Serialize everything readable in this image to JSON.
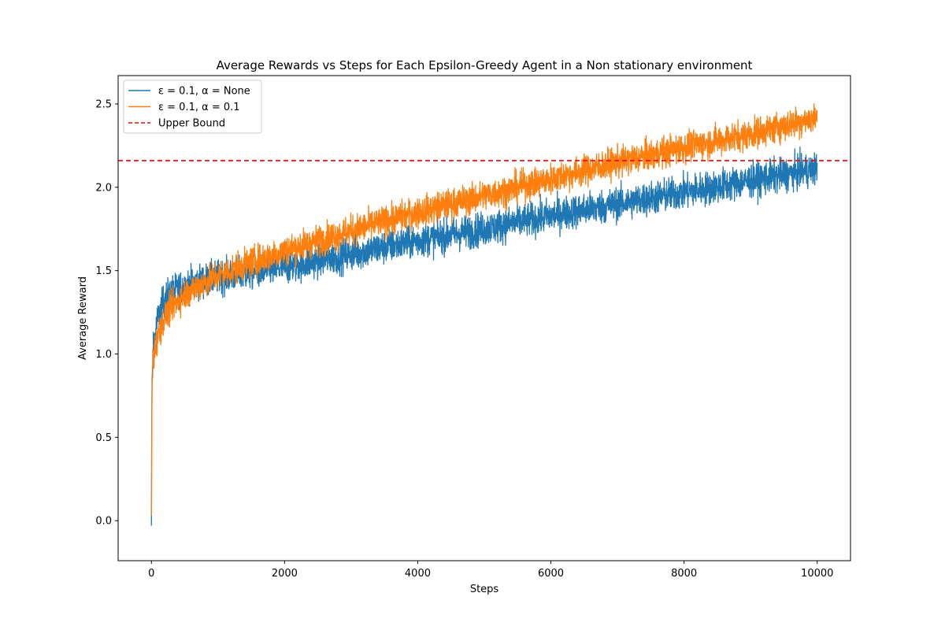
{
  "chart_data": {
    "type": "line",
    "title": "Average Rewards vs Steps for Each Epsilon-Greedy Agent in a Non stationary environment",
    "xlabel": "Steps",
    "ylabel": "Average Reward",
    "xlim": [
      -500,
      10500
    ],
    "ylim": [
      -0.24,
      2.67
    ],
    "xticks": [
      0,
      2000,
      4000,
      6000,
      8000,
      10000
    ],
    "xtick_labels": [
      "0",
      "2000",
      "4000",
      "6000",
      "8000",
      "10000"
    ],
    "yticks": [
      0.0,
      0.5,
      1.0,
      1.5,
      2.0,
      2.5
    ],
    "ytick_labels": [
      "0.0",
      "0.5",
      "1.0",
      "1.5",
      "2.0",
      "2.5"
    ],
    "grid": false,
    "legend_position": "top-left",
    "series": [
      {
        "name": "ε = 0.1, α = None",
        "color": "#1f77b4",
        "style": "solid",
        "noise": 0.05,
        "x": [
          0,
          5,
          10,
          25,
          50,
          100,
          200,
          300,
          500,
          800,
          1000,
          1500,
          2000,
          3000,
          4000,
          5000,
          6000,
          7000,
          8000,
          9000,
          10000
        ],
        "y": [
          -0.03,
          0.6,
          0.85,
          1.0,
          1.1,
          1.22,
          1.33,
          1.37,
          1.41,
          1.44,
          1.46,
          1.49,
          1.52,
          1.6,
          1.68,
          1.75,
          1.83,
          1.9,
          1.97,
          2.04,
          2.11
        ]
      },
      {
        "name": "ε = 0.1, α = 0.1",
        "color": "#ff7f0e",
        "style": "solid",
        "noise": 0.045,
        "x": [
          0,
          5,
          10,
          25,
          50,
          100,
          200,
          300,
          500,
          800,
          1000,
          1500,
          2000,
          3000,
          4000,
          5000,
          6000,
          7000,
          8000,
          9000,
          10000
        ],
        "y": [
          0.03,
          0.5,
          0.8,
          0.95,
          1.02,
          1.12,
          1.22,
          1.28,
          1.36,
          1.43,
          1.47,
          1.55,
          1.62,
          1.74,
          1.85,
          1.95,
          2.05,
          2.15,
          2.24,
          2.32,
          2.42
        ]
      },
      {
        "name": "Upper Bound",
        "color": "#ff0000",
        "style": "dashed",
        "hline": 2.16
      }
    ]
  }
}
